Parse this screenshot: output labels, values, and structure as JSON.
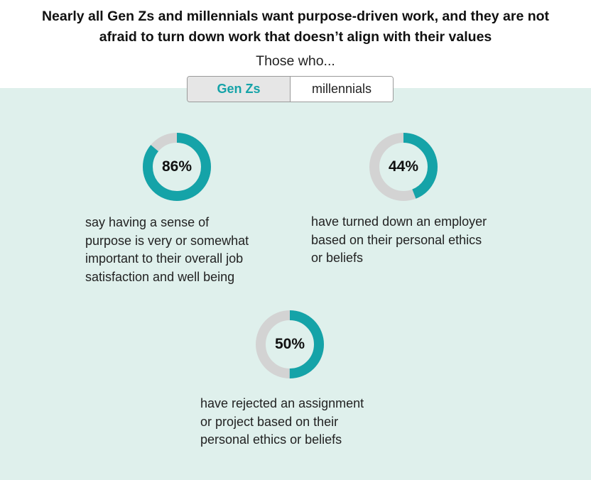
{
  "header": {
    "title_line1": "Nearly all Gen Zs and millennials want purpose-driven work, and they are not",
    "title_line2": "afraid to turn down work that doesn’t align with their values",
    "subtitle": "Those who..."
  },
  "toggle": {
    "options": [
      {
        "label": "Gen Zs",
        "selected": true
      },
      {
        "label": "millennials",
        "selected": false
      }
    ]
  },
  "colors": {
    "accent": "#15a3a8",
    "track": "#d3d3d3",
    "panel": "#dff0ec"
  },
  "chart_data": {
    "type": "pie",
    "series": "Gen Zs",
    "items": [
      {
        "value": 86,
        "label": "86%",
        "lines": [
          "say having a sense of",
          "purpose is very or somewhat",
          "important to their overall job",
          "satisfaction and well being"
        ]
      },
      {
        "value": 44,
        "label": "44%",
        "lines": [
          "have turned down an employer",
          "based on their personal ethics",
          "or beliefs"
        ]
      },
      {
        "value": 50,
        "label": "50%",
        "lines": [
          "have rejected an assignment",
          "or project based on their",
          "personal ethics or beliefs"
        ]
      }
    ]
  }
}
